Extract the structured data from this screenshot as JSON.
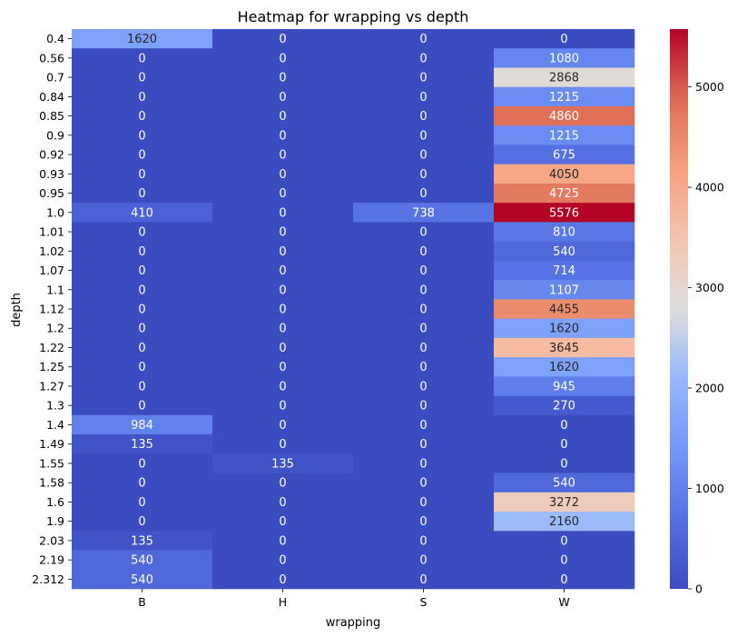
{
  "chart_data": {
    "type": "heatmap",
    "title": "Heatmap for wrapping vs depth",
    "xlabel": "wrapping",
    "ylabel": "depth",
    "x_categories": [
      "B",
      "H",
      "S",
      "W"
    ],
    "y_categories": [
      "0.4",
      "0.56",
      "0.7",
      "0.84",
      "0.85",
      "0.9",
      "0.92",
      "0.93",
      "0.95",
      "1.0",
      "1.01",
      "1.02",
      "1.07",
      "1.1",
      "1.12",
      "1.2",
      "1.22",
      "1.25",
      "1.27",
      "1.3",
      "1.4",
      "1.49",
      "1.55",
      "1.58",
      "1.6",
      "1.9",
      "2.03",
      "2.19",
      "2.312"
    ],
    "values": [
      [
        1620,
        0,
        0,
        0
      ],
      [
        0,
        0,
        0,
        1080
      ],
      [
        0,
        0,
        0,
        2868
      ],
      [
        0,
        0,
        0,
        1215
      ],
      [
        0,
        0,
        0,
        4860
      ],
      [
        0,
        0,
        0,
        1215
      ],
      [
        0,
        0,
        0,
        675
      ],
      [
        0,
        0,
        0,
        4050
      ],
      [
        0,
        0,
        0,
        4725
      ],
      [
        410,
        0,
        738,
        5576
      ],
      [
        0,
        0,
        0,
        810
      ],
      [
        0,
        0,
        0,
        540
      ],
      [
        0,
        0,
        0,
        714
      ],
      [
        0,
        0,
        0,
        1107
      ],
      [
        0,
        0,
        0,
        4455
      ],
      [
        0,
        0,
        0,
        1620
      ],
      [
        0,
        0,
        0,
        3645
      ],
      [
        0,
        0,
        0,
        1620
      ],
      [
        0,
        0,
        0,
        945
      ],
      [
        0,
        0,
        0,
        270
      ],
      [
        984,
        0,
        0,
        0
      ],
      [
        135,
        0,
        0,
        0
      ],
      [
        0,
        135,
        0,
        0
      ],
      [
        0,
        0,
        0,
        540
      ],
      [
        0,
        0,
        0,
        3272
      ],
      [
        0,
        0,
        0,
        2160
      ],
      [
        135,
        0,
        0,
        0
      ],
      [
        540,
        0,
        0,
        0
      ],
      [
        540,
        0,
        0,
        0
      ]
    ],
    "colormap": "coolwarm",
    "vmin": 0,
    "vmax": 5576,
    "colorbar_ticks": [
      0,
      1000,
      2000,
      3000,
      4000,
      5000
    ],
    "annotations": true
  }
}
